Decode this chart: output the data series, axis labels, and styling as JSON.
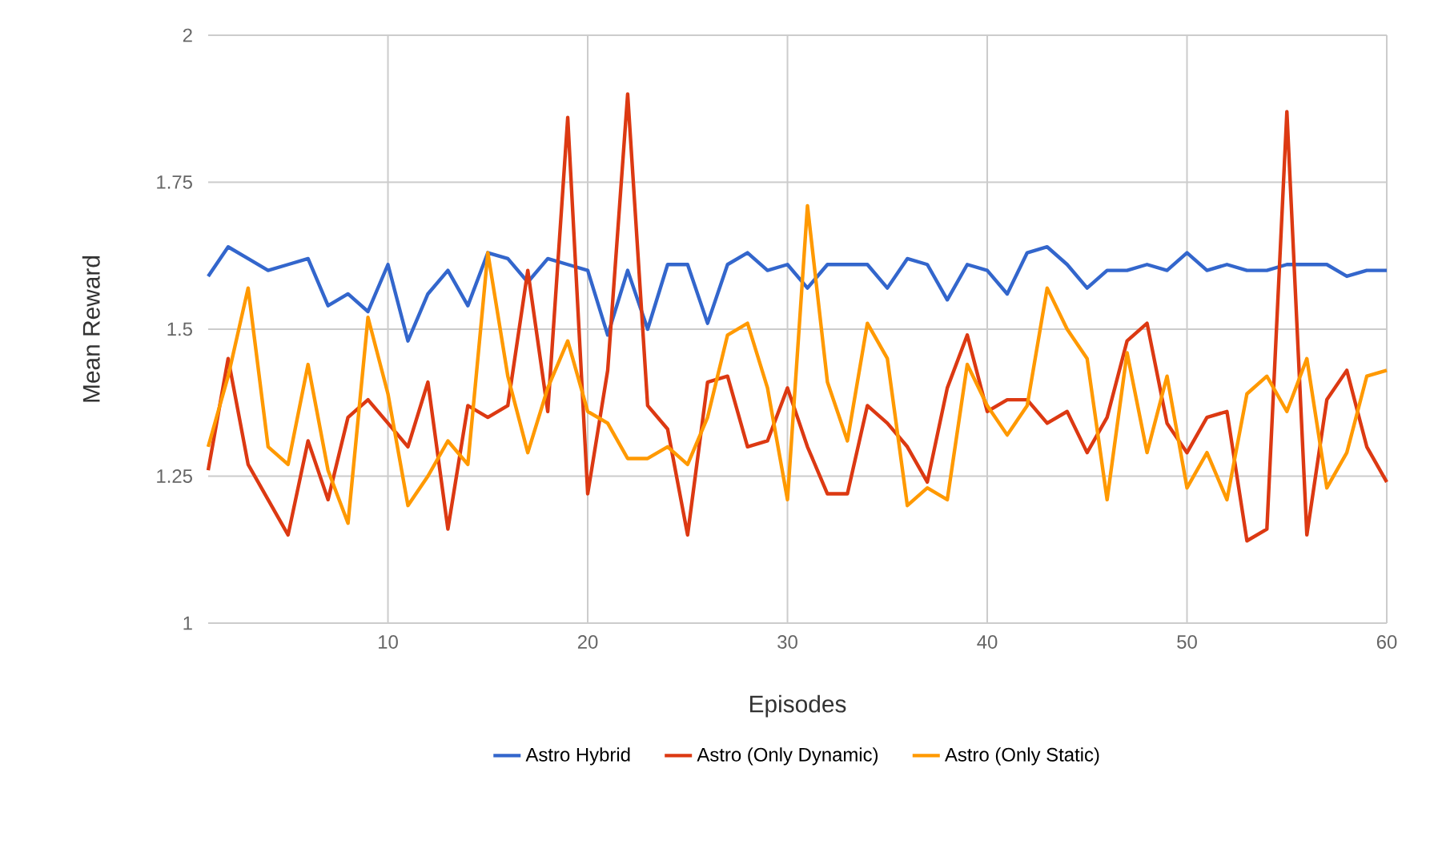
{
  "chart_data": {
    "type": "line",
    "xlabel": "Episodes",
    "ylabel": "Mean Reward",
    "x": [
      1,
      2,
      3,
      4,
      5,
      6,
      7,
      8,
      9,
      10,
      11,
      12,
      13,
      14,
      15,
      16,
      17,
      18,
      19,
      20,
      21,
      22,
      23,
      24,
      25,
      26,
      27,
      28,
      29,
      30,
      31,
      32,
      33,
      34,
      35,
      36,
      37,
      38,
      39,
      40,
      41,
      42,
      43,
      44,
      45,
      46,
      47,
      48,
      49,
      50,
      51,
      52,
      53,
      54,
      55,
      56,
      57,
      58,
      59,
      60
    ],
    "series": [
      {
        "name": "Astro Hybrid",
        "color": "#3366cc",
        "values": [
          1.59,
          1.64,
          1.62,
          1.6,
          1.61,
          1.62,
          1.54,
          1.56,
          1.53,
          1.61,
          1.48,
          1.56,
          1.6,
          1.54,
          1.63,
          1.62,
          1.58,
          1.62,
          1.61,
          1.6,
          1.49,
          1.6,
          1.5,
          1.61,
          1.61,
          1.51,
          1.61,
          1.63,
          1.6,
          1.61,
          1.57,
          1.61,
          1.61,
          1.61,
          1.57,
          1.62,
          1.61,
          1.55,
          1.61,
          1.6,
          1.56,
          1.63,
          1.64,
          1.61,
          1.57,
          1.6,
          1.6,
          1.61,
          1.6,
          1.63,
          1.6,
          1.61,
          1.6,
          1.6,
          1.61,
          1.61,
          1.61,
          1.59,
          1.6,
          1.6
        ]
      },
      {
        "name": "Astro (Only Dynamic)",
        "color": "#dc3912",
        "values": [
          1.26,
          1.45,
          1.27,
          1.21,
          1.15,
          1.31,
          1.21,
          1.35,
          1.38,
          1.34,
          1.3,
          1.41,
          1.16,
          1.37,
          1.35,
          1.37,
          1.6,
          1.36,
          1.86,
          1.22,
          1.43,
          1.9,
          1.37,
          1.33,
          1.15,
          1.41,
          1.42,
          1.3,
          1.31,
          1.4,
          1.3,
          1.22,
          1.22,
          1.37,
          1.34,
          1.3,
          1.24,
          1.4,
          1.49,
          1.36,
          1.38,
          1.38,
          1.34,
          1.36,
          1.29,
          1.35,
          1.48,
          1.51,
          1.34,
          1.29,
          1.35,
          1.36,
          1.14,
          1.16,
          1.87,
          1.15,
          1.38,
          1.43,
          1.3,
          1.24
        ]
      },
      {
        "name": "Astro (Only Static)",
        "color": "#ff9900",
        "values": [
          1.3,
          1.42,
          1.57,
          1.3,
          1.27,
          1.44,
          1.26,
          1.17,
          1.52,
          1.39,
          1.2,
          1.25,
          1.31,
          1.27,
          1.63,
          1.42,
          1.29,
          1.4,
          1.48,
          1.36,
          1.34,
          1.28,
          1.28,
          1.3,
          1.27,
          1.35,
          1.49,
          1.51,
          1.4,
          1.21,
          1.71,
          1.41,
          1.31,
          1.51,
          1.45,
          1.2,
          1.23,
          1.21,
          1.44,
          1.37,
          1.32,
          1.37,
          1.57,
          1.5,
          1.45,
          1.21,
          1.46,
          1.29,
          1.42,
          1.23,
          1.29,
          1.21,
          1.39,
          1.42,
          1.36,
          1.45,
          1.23,
          1.29,
          1.42,
          1.43
        ]
      }
    ],
    "xlim": [
      1,
      60
    ],
    "xticks": [
      10,
      20,
      30,
      40,
      50,
      60
    ],
    "ylim": [
      1,
      2
    ],
    "yticks": [
      1,
      1.25,
      1.5,
      1.75,
      2
    ],
    "grid": true,
    "legend": "bottom",
    "marker": "none",
    "line_style": "solid"
  }
}
